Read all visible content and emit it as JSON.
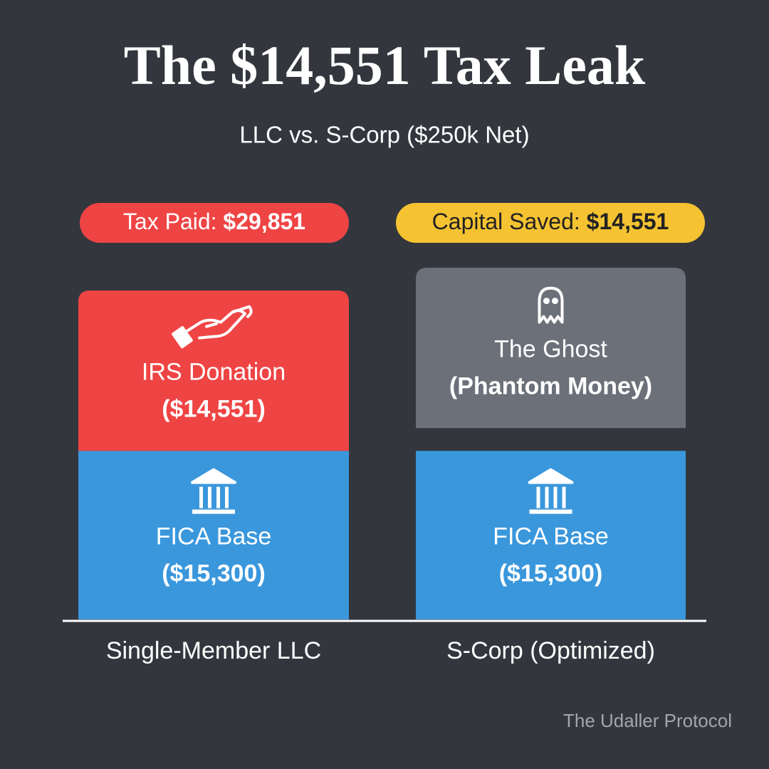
{
  "chart_data": {
    "type": "stacked-bar",
    "title": "The $14,551 Tax Leak",
    "subtitle": "LLC vs. S-Corp ($250k Net)",
    "categories": [
      "Single-Member LLC",
      "S-Corp (Optimized)"
    ],
    "badges": [
      {
        "label": "Tax Paid:",
        "value": "$29,851",
        "color": "#ef4444"
      },
      {
        "label": "Capital Saved:",
        "value": "$14,551",
        "color": "#f5c332"
      }
    ],
    "bars": [
      {
        "segments": [
          {
            "name": "FICA Base",
            "value": 15300,
            "value_label": "($15,300)",
            "color": "#3a97dc"
          },
          {
            "name": "IRS Donation",
            "value": 14551,
            "value_label": "($14,551)",
            "color": "#ef4444"
          }
        ]
      },
      {
        "segments": [
          {
            "name": "FICA Base",
            "value": 15300,
            "value_label": "($15,300)",
            "color": "#3a97dc"
          },
          {
            "name": "The Ghost",
            "note": "(Phantom Money)",
            "value": 14551,
            "color": "#6b7079"
          }
        ]
      }
    ],
    "source": "The Udaller Protocol"
  }
}
